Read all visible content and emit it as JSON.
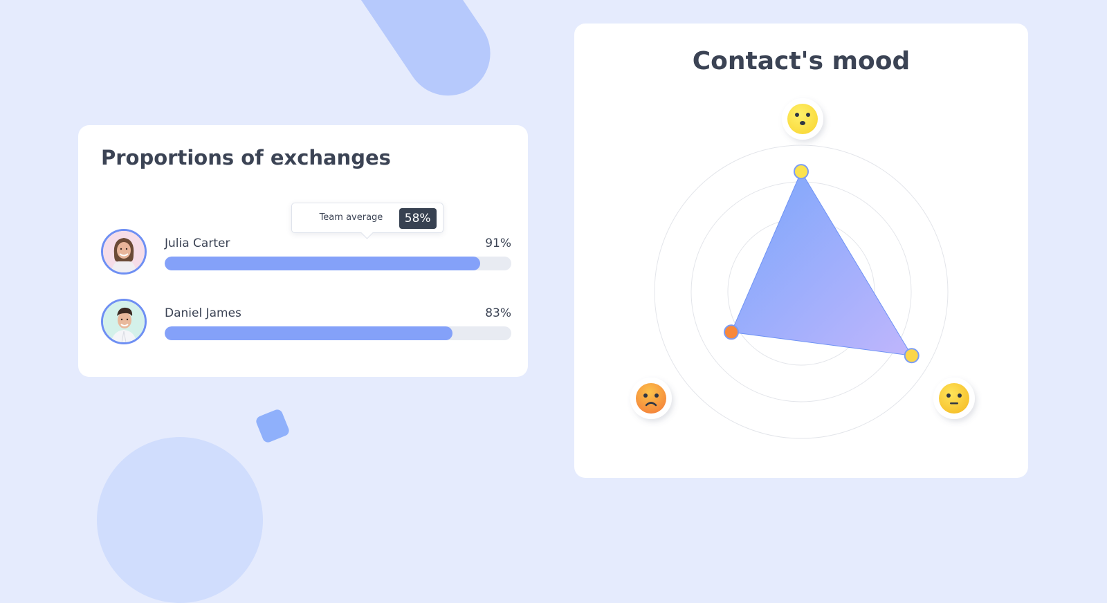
{
  "exchanges": {
    "title": "Proportions of exchanges",
    "tooltip": {
      "label": "Team average",
      "value": "58%",
      "level": 0.58
    },
    "members": [
      {
        "name": "Julia Carter",
        "percent_label": "91%",
        "level": 0.91
      },
      {
        "name": "Daniel James",
        "percent_label": "83%",
        "level": 0.83
      }
    ]
  },
  "mood": {
    "title": "Contact's mood",
    "axes": [
      {
        "icon": "happy-face-icon"
      },
      {
        "icon": "neutral-face-icon"
      },
      {
        "icon": "sad-face-icon"
      }
    ]
  },
  "chart_data": {
    "type": "radar",
    "title": "Contact's mood",
    "axes": [
      "happy",
      "neutral",
      "sad"
    ],
    "rings": 4,
    "max": 1.0,
    "values": [
      0.82,
      0.87,
      0.55
    ],
    "point_colors": [
      "#fbe34f",
      "#fbd64a",
      "#f8883a"
    ],
    "fill_colors": [
      "#7aa6fb",
      "#c0b6fc"
    ]
  },
  "colors": {
    "background": "#e5ebfd",
    "bar_fill": "#84a1f9",
    "bar_track": "#e8ebf2",
    "avatar_ring": "#6e8ff3",
    "tooltip_badge": "#374151"
  }
}
